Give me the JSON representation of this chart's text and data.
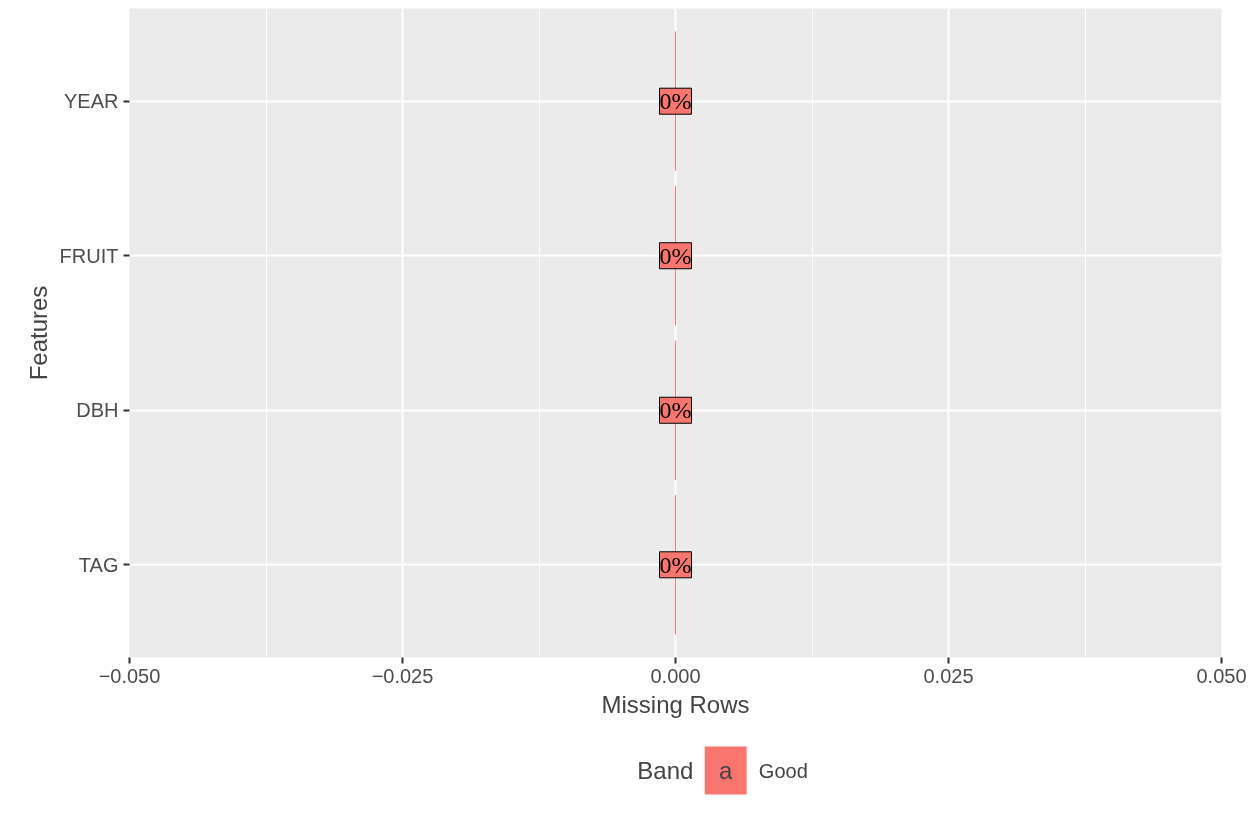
{
  "chart_data": {
    "type": "bar",
    "orientation": "horizontal",
    "xlabel": "Missing Rows",
    "ylabel": "Features",
    "legend_title": "Band",
    "categories": [
      "YEAR",
      "FRUIT",
      "DBH",
      "TAG"
    ],
    "series": [
      {
        "name": "Good",
        "color": "#f8766d",
        "values": [
          0,
          0,
          0,
          0
        ],
        "value_labels": [
          "0%",
          "0%",
          "0%",
          "0%"
        ]
      }
    ],
    "xlim": [
      -0.05,
      0.05
    ],
    "xticks": [
      {
        "value": -0.05,
        "label": "−0.050"
      },
      {
        "value": -0.025,
        "label": "−0.025"
      },
      {
        "value": 0,
        "label": "0.000"
      },
      {
        "value": 0.025,
        "label": "0.025"
      },
      {
        "value": 0.05,
        "label": "0.050"
      }
    ],
    "grid": true,
    "legend": "bottom",
    "annotations": [
      "a"
    ]
  }
}
